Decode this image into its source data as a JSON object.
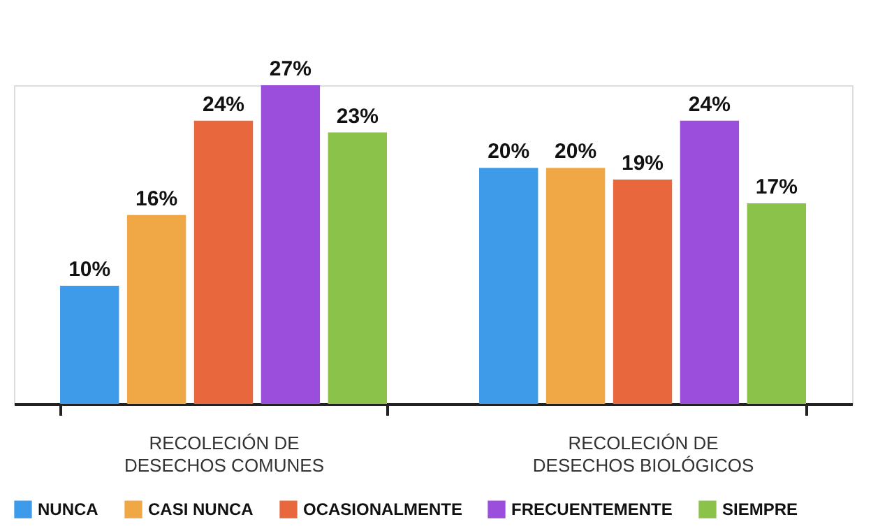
{
  "chart_data": {
    "type": "bar",
    "categories": [
      "RECOLECIÓN DE DESECHOS COMUNES",
      "RECOLECIÓN DE DESECHOS BIOLÓGICOS"
    ],
    "series": [
      {
        "name": "NUNCA",
        "color": "#3d9be9",
        "values": [
          10,
          20
        ],
        "value_labels": [
          "10%",
          "20%"
        ]
      },
      {
        "name": "CASI NUNCA",
        "color": "#f0a847",
        "values": [
          16,
          20
        ],
        "value_labels": [
          "16%",
          "20%"
        ]
      },
      {
        "name": "OCASIONALMENTE",
        "color": "#e9673c",
        "values": [
          24,
          19
        ],
        "value_labels": [
          "24%",
          "19%"
        ]
      },
      {
        "name": "FRECUENTEMENTE",
        "color": "#9b4ddb",
        "values": [
          27,
          24
        ],
        "value_labels": [
          "27%",
          "24%"
        ]
      },
      {
        "name": "SIEMPRE",
        "color": "#8bc34a",
        "values": [
          23,
          17
        ],
        "value_labels": [
          "23%",
          "17%"
        ]
      }
    ],
    "legend": "bottom",
    "grid": false,
    "tick_labels": "x"
  }
}
